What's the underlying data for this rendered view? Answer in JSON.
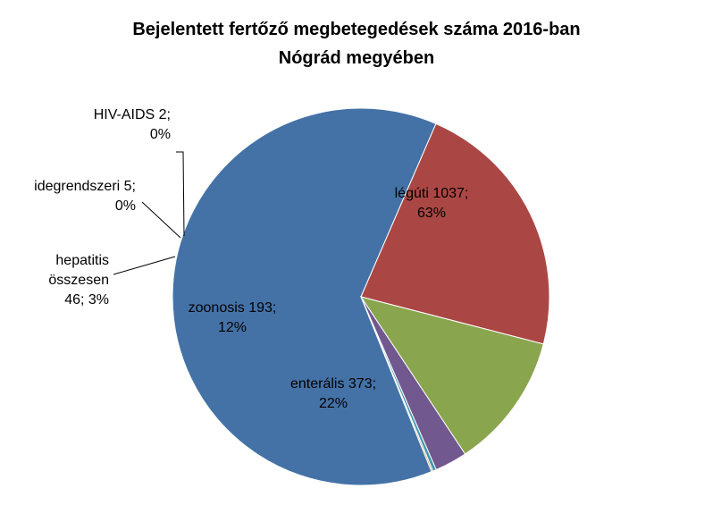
{
  "chart_data": {
    "type": "pie",
    "title": [
      "Bejelentett fertőző megbetegedések száma 2016-ban",
      "Nógrád  megyében"
    ],
    "slices": [
      {
        "category": "légúti",
        "value": 1037,
        "percent": "63%",
        "color": "#4472A6",
        "label_lines": [
          "légúti 1037;",
          "63%"
        ]
      },
      {
        "category": "enterális",
        "value": 373,
        "percent": "22%",
        "color": "#AA4744",
        "label_lines": [
          "enterális  373;",
          "22%"
        ]
      },
      {
        "category": "zoonosis",
        "value": 193,
        "percent": "12%",
        "color": "#89A54E",
        "label_lines": [
          "zoonosis 193;",
          "12%"
        ]
      },
      {
        "category": "hepatitis összesen",
        "value": 46,
        "percent": "3%",
        "color": "#71588F",
        "label_lines": [
          "hepatitis",
          "összesen",
          "46; 3%"
        ]
      },
      {
        "category": "idegrendszeri",
        "value": 5,
        "percent": "0%",
        "color": "#4198AF",
        "label_lines": [
          "idegrendszeri 5;",
          "0%"
        ]
      },
      {
        "category": "HIV-AIDS",
        "value": 2,
        "percent": "0%",
        "color": "#DB843D",
        "label_lines": [
          "HIV-AIDS 2;",
          "0%"
        ]
      }
    ]
  }
}
